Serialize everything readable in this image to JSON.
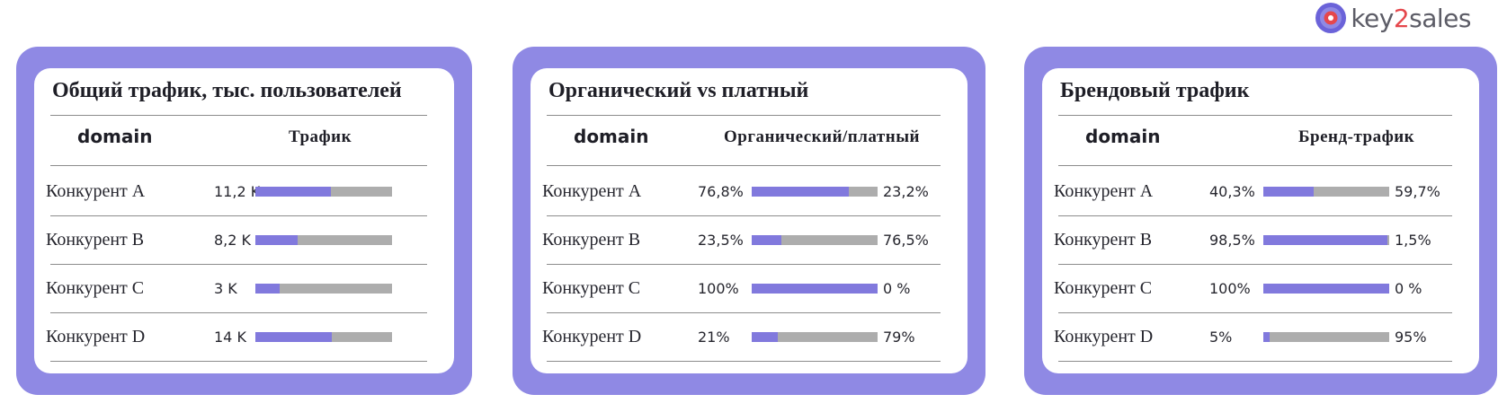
{
  "logo": {
    "text_a": "key",
    "text_b": "2",
    "text_c": "sales"
  },
  "colors": {
    "frame": "#8f89e4",
    "bar_fill": "#8179dd",
    "bar_track": "#adadad"
  },
  "chart_data": [
    {
      "type": "bar",
      "title": "Общий трафик, тыс. пользователей",
      "col_domain": "domain",
      "col_metric": "Трафик",
      "categories": [
        "Конкурент A",
        "Конкурент B",
        "Конкурент C",
        "Конкурент D"
      ],
      "value_labels": [
        "11,2 K",
        "8,2 K",
        "3 K",
        "14 K"
      ],
      "values": [
        11.2,
        8.2,
        3,
        14
      ],
      "fill_fraction": [
        0.55,
        0.31,
        0.18,
        0.56
      ]
    },
    {
      "type": "bar",
      "title": "Органический vs платный",
      "col_domain": "domain",
      "col_metric": "Органический/платный",
      "categories": [
        "Конкурент A",
        "Конкурент B",
        "Конкурент C",
        "Конкурент D"
      ],
      "left_labels": [
        "76,8%",
        "23,5%",
        "100%",
        "21%"
      ],
      "right_labels": [
        "23,2%",
        "76,5%",
        "0 %",
        "79%"
      ],
      "series": [
        {
          "values": [
            76.8,
            23.5,
            100,
            21
          ]
        },
        {
          "values": [
            23.2,
            76.5,
            0,
            79
          ]
        }
      ]
    },
    {
      "type": "bar",
      "title": "Брендовый трафик",
      "col_domain": "domain",
      "col_metric": "Бренд-трафик",
      "categories": [
        "Конкурент A",
        "Конкурент B",
        "Конкурент C",
        "Конкурент D"
      ],
      "left_labels": [
        "40,3%",
        "98,5%",
        "100%",
        "5%"
      ],
      "right_labels": [
        "59,7%",
        "1,5%",
        "0 %",
        "95%"
      ],
      "series": [
        {
          "values": [
            40.3,
            98.5,
            100,
            5
          ]
        },
        {
          "values": [
            59.7,
            1.5,
            0,
            95
          ]
        }
      ]
    }
  ]
}
